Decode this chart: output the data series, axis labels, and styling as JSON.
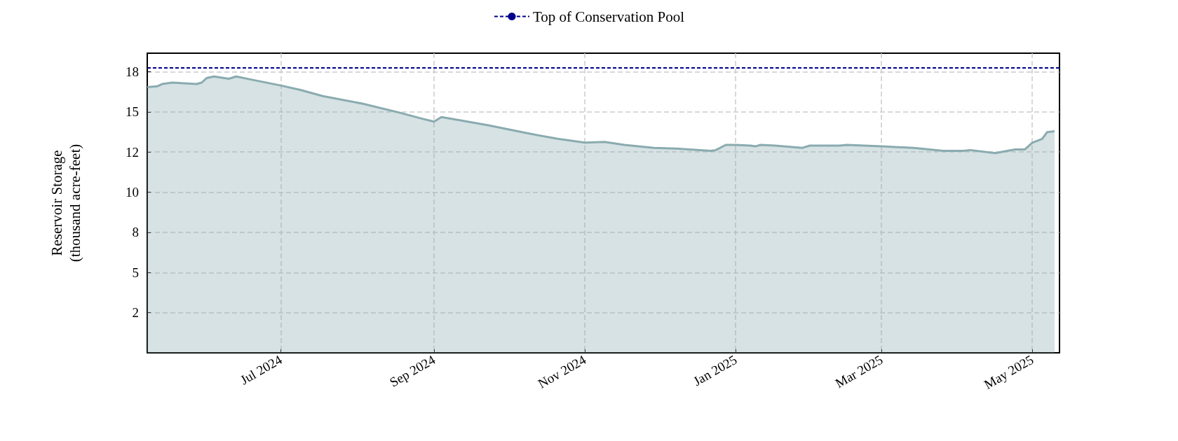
{
  "chart_data": {
    "type": "area",
    "ylabel": "Reservoir Storage\n(thousand acre-feet)",
    "x": [
      "2024-05-08",
      "2024-05-12",
      "2024-05-14",
      "2024-05-18",
      "2024-05-23",
      "2024-05-28",
      "2024-05-30",
      "2024-06-01",
      "2024-06-04",
      "2024-06-10",
      "2024-06-13",
      "2024-06-19",
      "2024-07-01",
      "2024-07-09",
      "2024-07-18",
      "2024-08-03",
      "2024-08-18",
      "2024-08-27",
      "2024-09-01",
      "2024-09-04",
      "2024-09-11",
      "2024-09-23",
      "2024-10-08",
      "2024-10-21",
      "2024-11-01",
      "2024-11-09",
      "2024-11-17",
      "2024-11-29",
      "2024-12-08",
      "2024-12-22",
      "2024-12-24",
      "2024-12-28",
      "2025-01-01",
      "2025-01-07",
      "2025-01-09",
      "2025-01-11",
      "2025-01-17",
      "2025-01-28",
      "2025-01-31",
      "2025-02-12",
      "2025-02-15",
      "2025-03-01",
      "2025-03-14",
      "2025-03-26",
      "2025-04-03",
      "2025-04-06",
      "2025-04-16",
      "2025-04-19",
      "2025-04-24",
      "2025-04-28",
      "2025-05-01",
      "2025-05-05",
      "2025-05-07",
      "2025-05-10"
    ],
    "series": [
      {
        "color": "#8aabb0",
        "values": [
          16.54,
          16.59,
          16.73,
          16.82,
          16.78,
          16.73,
          16.82,
          17.1,
          17.2,
          17.06,
          17.2,
          17.01,
          16.64,
          16.36,
          15.98,
          15.51,
          14.95,
          14.58,
          14.39,
          14.67,
          14.49,
          14.16,
          13.69,
          13.32,
          13.08,
          13.13,
          12.94,
          12.76,
          12.71,
          12.57,
          12.62,
          12.94,
          12.94,
          12.9,
          12.85,
          12.94,
          12.9,
          12.76,
          12.9,
          12.9,
          12.94,
          12.85,
          12.76,
          12.57,
          12.57,
          12.62,
          12.43,
          12.52,
          12.66,
          12.66,
          13.08,
          13.32,
          13.74,
          13.79
        ]
      }
    ],
    "xlim": [
      "2024-05-08",
      "2025-05-12"
    ],
    "xticks": [
      {
        "value": "2024-07-01",
        "label": "Jul 2024"
      },
      {
        "value": "2024-09-01",
        "label": "Sep 2024"
      },
      {
        "value": "2024-11-01",
        "label": "Nov 2024"
      },
      {
        "value": "2025-01-01",
        "label": "Jan 2025"
      },
      {
        "value": "2025-03-01",
        "label": "Mar 2025"
      },
      {
        "value": "2025-05-01",
        "label": "May 2025"
      }
    ],
    "ylim": [
      0,
      18.65
    ],
    "yticks": [
      {
        "value": 2.5,
        "label": "2"
      },
      {
        "value": 5,
        "label": "5"
      },
      {
        "value": 7.5,
        "label": "8"
      },
      {
        "value": 10,
        "label": "10"
      },
      {
        "value": 12.5,
        "label": "12"
      },
      {
        "value": 15,
        "label": "15"
      },
      {
        "value": 17.5,
        "label": "18"
      }
    ],
    "ref_lines": [
      {
        "axis": "y",
        "value": 17.75,
        "label": "Top of Conservation Pool",
        "color": "#00008b",
        "line_style": "dashed"
      }
    ],
    "grid": true,
    "legend": "top"
  }
}
